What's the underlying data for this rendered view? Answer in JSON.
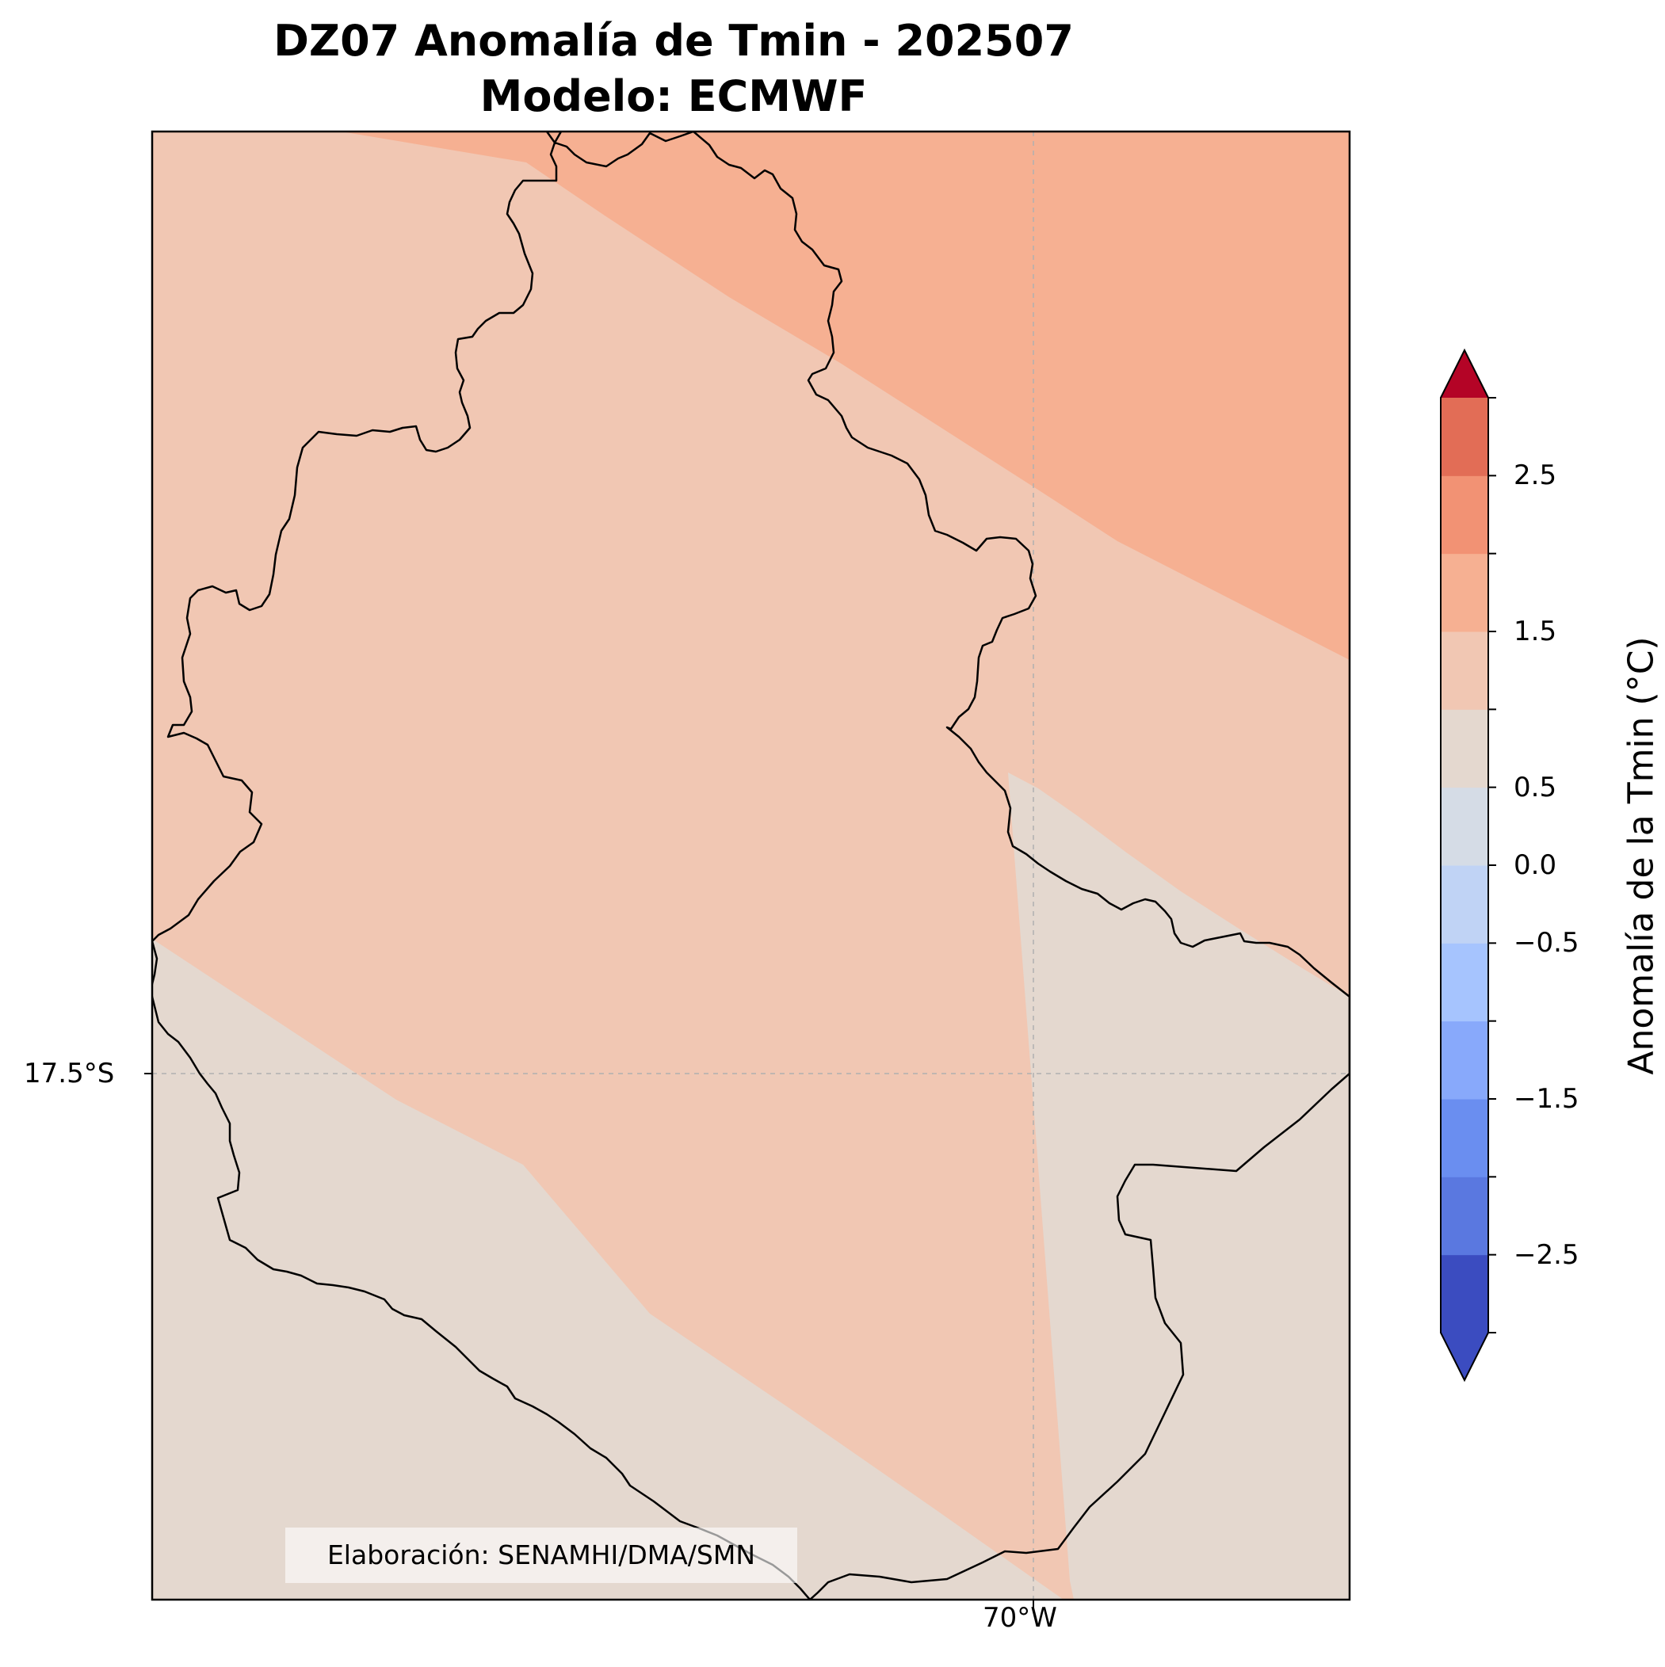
{
  "title": {
    "line1": "DZ07 Anomalía de Tmin - 202507",
    "line2": "Modelo: ECMWF"
  },
  "axes": {
    "lat_tick": "17.5°S",
    "lon_tick": "70°W"
  },
  "credit": "Elaboración: SENAMHI/DMA/SMN",
  "colorbar": {
    "title": "Anomalía de la Tmin (°C)",
    "tick_labels": [
      "2.5",
      "1.5",
      "0.5",
      "0.0",
      "−0.5",
      "−1.5",
      "−2.5"
    ],
    "levels": [
      -3.0,
      -2.5,
      -2.0,
      -1.5,
      -1.0,
      -0.5,
      0.0,
      0.5,
      1.0,
      1.5,
      2.0,
      2.5,
      3.0
    ],
    "colors": [
      "#3b4cc0",
      "#5a78e0",
      "#6a8ef0",
      "#88a9fb",
      "#a6c4fe",
      "#c0d3f5",
      "#d5dce6",
      "#e4d8cf",
      "#f1c7b3",
      "#f6b092",
      "#f29274",
      "#e26d56",
      "#ce4a40",
      "#b40426"
    ],
    "under_color": "#3b4cc0",
    "over_color": "#b40426"
  },
  "map_fill": {
    "low_band_color": "#e4d8cf",
    "mid_band_color": "#f1c7b3",
    "high_band_color": "#f6b092"
  },
  "gridline_color": "#b0b0b0"
}
